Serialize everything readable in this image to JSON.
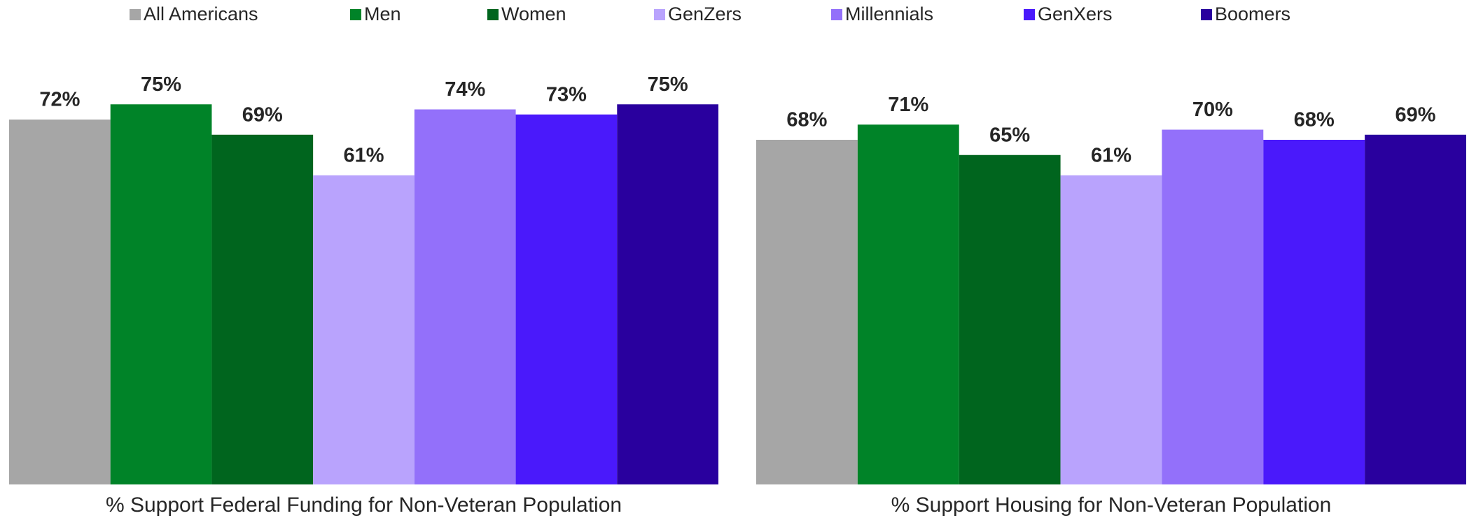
{
  "chart_data": {
    "type": "bar",
    "categories": [
      "% Support Federal Funding for Non-Veteran Population",
      "% Support Housing for Non-Veteran Population"
    ],
    "legend": "top",
    "series": [
      {
        "name": "All Americans",
        "color": "#a6a6a6",
        "values": [
          72,
          68
        ],
        "value_labels": [
          "72%",
          "68%"
        ]
      },
      {
        "name": "Men",
        "color": "#008328",
        "values": [
          75,
          71
        ],
        "value_labels": [
          "75%",
          "71%"
        ]
      },
      {
        "name": "Women",
        "color": "#00651e",
        "values": [
          69,
          65
        ],
        "value_labels": [
          "69%",
          "65%"
        ]
      },
      {
        "name": "GenZers",
        "color": "#b9a3fd",
        "values": [
          61,
          61
        ],
        "value_labels": [
          "61%",
          "61%"
        ]
      },
      {
        "name": "Millennials",
        "color": "#9370fa",
        "values": [
          74,
          70
        ],
        "value_labels": [
          "74%",
          "70%"
        ]
      },
      {
        "name": "GenXers",
        "color": "#4a19fb",
        "values": [
          73,
          68
        ],
        "value_labels": [
          "73%",
          "68%"
        ]
      },
      {
        "name": "Boomers",
        "color": "#29009e",
        "values": [
          75,
          69
        ],
        "value_labels": [
          "75%",
          "69%"
        ]
      }
    ]
  }
}
